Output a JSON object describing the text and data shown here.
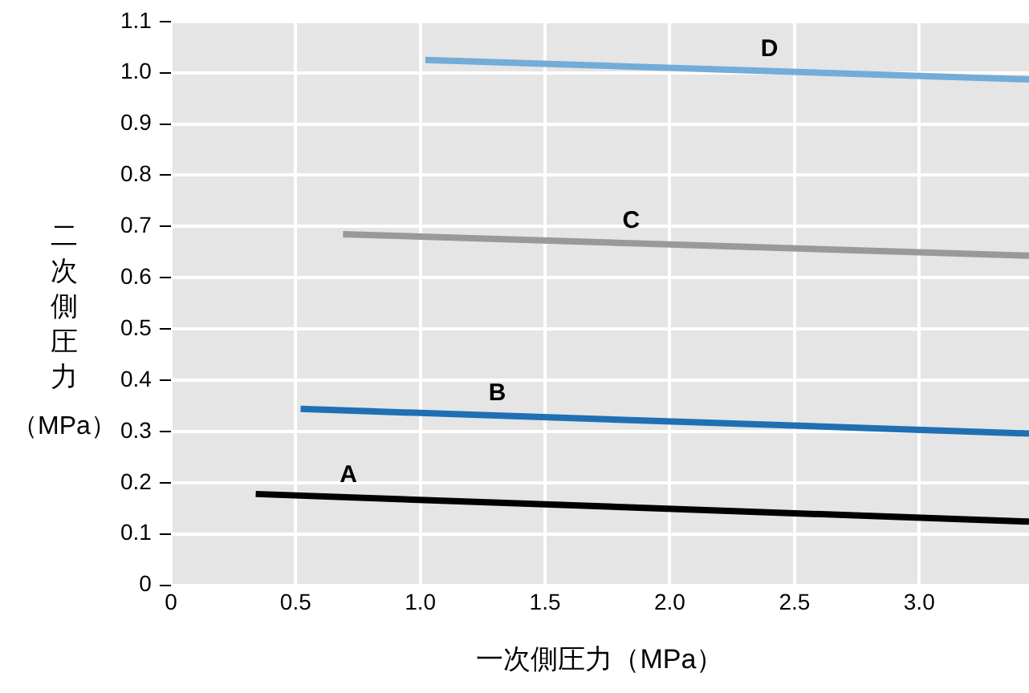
{
  "chart_data": {
    "type": "line",
    "xlabel": "一次側圧力（MPa）",
    "ylabel": "二次側圧力（MPa）",
    "xlim": [
      0,
      3.44
    ],
    "xticks": [
      0,
      {
        "value": 0.5,
        "label": "0.5"
      },
      {
        "value": 1,
        "label": "1.0"
      },
      {
        "value": 1.5,
        "label": "1.5"
      },
      {
        "value": 2,
        "label": "2.0"
      },
      {
        "value": 2.5,
        "label": "2.5"
      },
      {
        "value": 3,
        "label": "3.0"
      }
    ],
    "ylim": [
      0,
      1.1
    ],
    "yticks": [
      0,
      0.1,
      0.2,
      0.3,
      0.4,
      0.5,
      0.6,
      0.7,
      0.8,
      0.9,
      {
        "value": 1,
        "label": "1.0"
      },
      1.1
    ],
    "grid": true,
    "legend": false,
    "marker": "none",
    "line_style": "solid",
    "series": [
      {
        "name": "A",
        "color": "#000000",
        "x": [
          0.34,
          3.44
        ],
        "values": [
          0.178,
          0.124
        ]
      },
      {
        "name": "B",
        "color": "#1f6fb4",
        "x": [
          0.52,
          3.44
        ],
        "values": [
          0.344,
          0.296
        ]
      },
      {
        "name": "C",
        "color": "#999999",
        "x": [
          0.69,
          3.44
        ],
        "values": [
          0.685,
          0.643
        ]
      },
      {
        "name": "D",
        "color": "#74acd8",
        "x": [
          1.02,
          3.44
        ],
        "values": [
          1.025,
          0.987
        ]
      }
    ]
  }
}
